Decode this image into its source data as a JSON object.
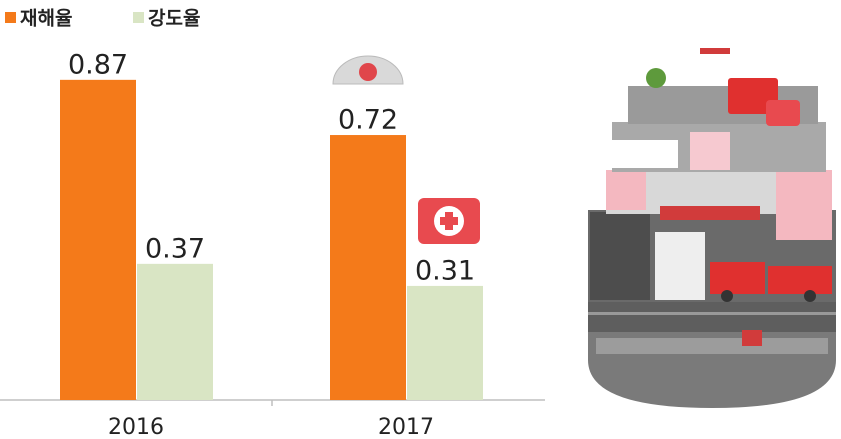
{
  "chart_data": {
    "type": "bar",
    "categories": [
      "2016",
      "2017"
    ],
    "series": [
      {
        "name": "재해율",
        "color": "#f47a1a",
        "values": [
          0.87,
          0.72
        ]
      },
      {
        "name": "강도율",
        "color": "#d9e5c4",
        "values": [
          0.37,
          0.31
        ]
      }
    ],
    "legend": "top-left"
  }
}
